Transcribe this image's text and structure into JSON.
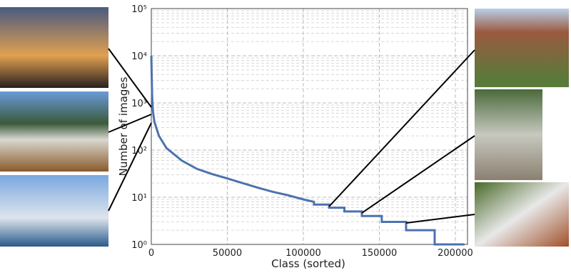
{
  "chart_data": {
    "type": "line",
    "xlabel": "Class (sorted)",
    "ylabel": "Number of images",
    "series": [
      {
        "color": "#4c72b0",
        "x": [
          0,
          500,
          1000,
          2000,
          5000,
          10000,
          20000,
          30000,
          40000,
          50000,
          60000,
          70000,
          80000,
          90000,
          100000,
          107000,
          107000,
          117000,
          117000,
          127000,
          127000,
          138500,
          138500,
          151600,
          151600,
          167600,
          167600,
          186400,
          186400,
          206000
        ],
        "values": [
          10000,
          1500,
          700,
          400,
          200,
          110,
          60,
          40,
          31,
          25,
          20,
          16,
          13,
          11,
          9,
          8,
          7,
          7,
          6,
          6,
          5,
          5,
          4,
          4,
          3,
          3,
          2,
          2,
          1,
          1
        ]
      }
    ],
    "xlim": [
      0,
      208000
    ],
    "xticks": [
      0,
      50000,
      100000,
      150000,
      200000
    ],
    "ylim": [
      1,
      100000
    ],
    "log_y": true,
    "yticks": [
      {
        "value": 1,
        "label": "10⁰"
      },
      {
        "value": 10,
        "label": "10¹"
      },
      {
        "value": 100,
        "label": "10²"
      },
      {
        "value": 1000,
        "label": "10³"
      },
      {
        "value": 10000,
        "label": "10⁴"
      },
      {
        "value": 100000,
        "label": "10⁵"
      }
    ],
    "grid": true,
    "minor_grid": true
  }
}
